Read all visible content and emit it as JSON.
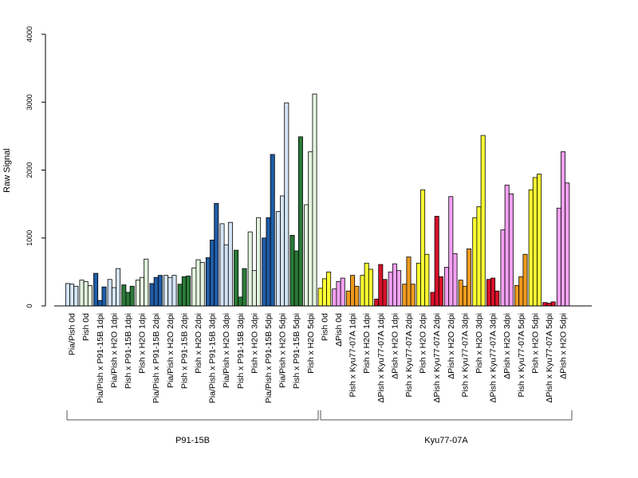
{
  "chart_data": {
    "type": "bar",
    "ylabel": "Raw Signal",
    "ylim": [
      0,
      4000
    ],
    "yticks": [
      0,
      1000,
      2000,
      3000,
      4000
    ],
    "grid": false,
    "colors": {
      "lightblue": "#d4e4f4",
      "darkblue": "#1f5ca6",
      "darkgreen": "#2a7a38",
      "lightgreen": "#e4f4df",
      "yellow": "#ffff33",
      "violet": "#f3a0f3",
      "orange": "#ef9a1e",
      "red": "#d7112a"
    },
    "categories": [
      {
        "label": "Pia/Pish 0d",
        "color": "lightblue",
        "values": [
          330,
          320,
          290
        ]
      },
      {
        "label": "Pish 0d",
        "color": "lightgreen",
        "values": [
          380,
          360,
          300
        ]
      },
      {
        "label": "Pia/Pish x P91-15B 1dpi",
        "color": "darkblue",
        "values": [
          480,
          80,
          280
        ]
      },
      {
        "label": "Pia/Pish x H2O 1dpi",
        "color": "lightblue",
        "values": [
          390,
          270,
          550
        ]
      },
      {
        "label": "Pish x P91-15B 1dpi",
        "color": "darkgreen",
        "values": [
          310,
          200,
          290
        ]
      },
      {
        "label": "Pish x H2O 1dpi",
        "color": "lightgreen",
        "values": [
          380,
          420,
          690
        ]
      },
      {
        "label": "Pia/Pish x P91-15B 2dpi",
        "color": "darkblue",
        "values": [
          330,
          420,
          450
        ]
      },
      {
        "label": "Pia/Pish x H2O 2dpi",
        "color": "lightblue",
        "values": [
          450,
          420,
          450
        ]
      },
      {
        "label": "Pish x P91-15B 2dpi",
        "color": "darkgreen",
        "values": [
          320,
          430,
          440
        ]
      },
      {
        "label": "Pish x H2O 2dpi",
        "color": "lightgreen",
        "values": [
          560,
          680,
          640
        ]
      },
      {
        "label": "Pia/Pish x P91-15B 3dpi",
        "color": "darkblue",
        "values": [
          710,
          970,
          1510
        ]
      },
      {
        "label": "Pia/Pish x H2O 3dpi",
        "color": "lightblue",
        "values": [
          1210,
          900,
          1230
        ]
      },
      {
        "label": "Pish x P91-15B 3dpi",
        "color": "darkgreen",
        "values": [
          820,
          130,
          550
        ]
      },
      {
        "label": "Pish x H2O 3dpi",
        "color": "lightgreen",
        "values": [
          1090,
          520,
          1300
        ]
      },
      {
        "label": "Pia/Pish x P91-15B 5dpi",
        "color": "darkblue",
        "values": [
          1000,
          1300,
          2230
        ]
      },
      {
        "label": "Pia/Pish x H2O 5dpi",
        "color": "lightblue",
        "values": [
          1390,
          1620,
          2990
        ]
      },
      {
        "label": "Pish x P91-15B 5dpi",
        "color": "darkgreen",
        "values": [
          1040,
          810,
          2490
        ]
      },
      {
        "label": "Pish x H2O 5dpi",
        "color": "lightgreen",
        "values": [
          1490,
          2270,
          3120
        ]
      },
      {
        "label": "Pish 0d",
        "color": "yellow",
        "values": [
          260,
          400,
          500
        ]
      },
      {
        "label": "ΔPish 0d",
        "color": "violet",
        "values": [
          250,
          360,
          410
        ]
      },
      {
        "label": "Pish x Kyu77-07A 1dpi",
        "color": "orange",
        "values": [
          220,
          450,
          290
        ]
      },
      {
        "label": "Pish x H2O 1dpi",
        "color": "yellow",
        "values": [
          450,
          630,
          540
        ]
      },
      {
        "label": "ΔPish x Kyu77-07A 1dpi",
        "color": "red",
        "values": [
          100,
          610,
          390
        ]
      },
      {
        "label": "ΔPish x H2O 1dpi",
        "color": "violet",
        "values": [
          500,
          620,
          520
        ]
      },
      {
        "label": "Pish x Kyu77-07A 2dpi",
        "color": "orange",
        "values": [
          320,
          720,
          320
        ]
      },
      {
        "label": "Pish x H2O 2dpi",
        "color": "yellow",
        "values": [
          630,
          1710,
          760
        ]
      },
      {
        "label": "ΔPish x Kyu77-07A 2dpi",
        "color": "red",
        "values": [
          200,
          1320,
          430
        ]
      },
      {
        "label": "ΔPish x H2O 2dpi",
        "color": "violet",
        "values": [
          570,
          1610,
          770
        ]
      },
      {
        "label": "Pish x Kyu77-07A 3dpi",
        "color": "orange",
        "values": [
          380,
          290,
          840
        ]
      },
      {
        "label": "Pish x H2O 3dpi",
        "color": "yellow",
        "values": [
          1300,
          1460,
          2510
        ]
      },
      {
        "label": "ΔPish x Kyu77-07A 3dpi",
        "color": "red",
        "values": [
          390,
          410,
          220
        ]
      },
      {
        "label": "ΔPish x H2O 3dpi",
        "color": "violet",
        "values": [
          1120,
          1780,
          1650
        ]
      },
      {
        "label": "Pish x Kyu77-07A 5dpi",
        "color": "orange",
        "values": [
          300,
          430,
          760
        ]
      },
      {
        "label": "Pish x H2O 5dpi",
        "color": "yellow",
        "values": [
          1710,
          1890,
          1940
        ]
      },
      {
        "label": "ΔPish x Kyu77-07A 5dpi",
        "color": "red",
        "values": [
          50,
          40,
          60
        ]
      },
      {
        "label": "ΔPish x H2O 5dpi",
        "color": "violet",
        "values": [
          1440,
          2270,
          1810
        ]
      }
    ],
    "groups": [
      {
        "label": "P91-15B",
        "from": 0,
        "to": 17
      },
      {
        "label": "Kyu77-07A",
        "from": 18,
        "to": 35
      }
    ]
  }
}
